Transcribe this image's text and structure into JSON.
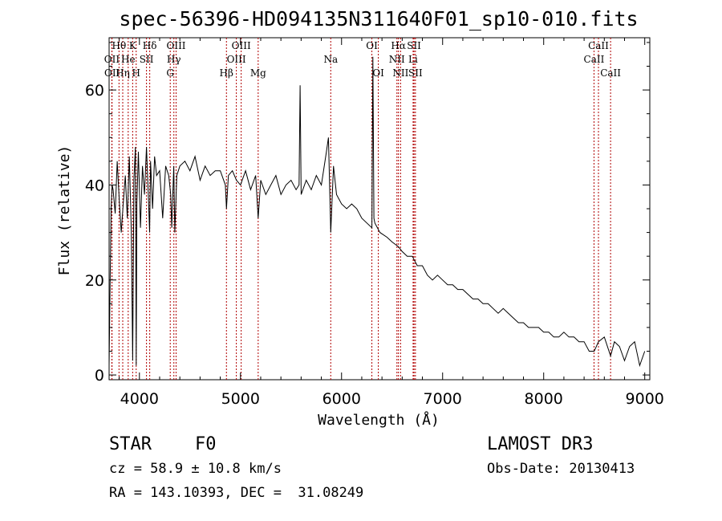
{
  "chart_data": {
    "type": "line",
    "title": "spec-56396-HD094135N311640F01_sp10-010.fits",
    "xlabel": "Wavelength (Å)",
    "ylabel": "Flux (relative)",
    "xlim": [
      3700,
      9050
    ],
    "ylim": [
      -1,
      71
    ],
    "xticks": [
      4000,
      5000,
      6000,
      7000,
      8000,
      9000
    ],
    "xtick_labels": [
      "4000",
      "5000",
      "6000",
      "7000",
      "8000",
      "9000"
    ],
    "yticks": [
      0,
      20,
      40,
      60
    ],
    "ytick_labels": [
      "0",
      "20",
      "40",
      "60"
    ],
    "grid": false,
    "series": [
      {
        "name": "flux",
        "x": [
          3700,
          3710,
          3720,
          3730,
          3740,
          3760,
          3780,
          3800,
          3820,
          3840,
          3860,
          3880,
          3900,
          3920,
          3933,
          3945,
          3960,
          3968,
          3975,
          3990,
          4010,
          4030,
          4050,
          4070,
          4090,
          4101,
          4110,
          4130,
          4150,
          4170,
          4200,
          4230,
          4260,
          4290,
          4310,
          4320,
          4340,
          4350,
          4370,
          4400,
          4450,
          4500,
          4550,
          4600,
          4650,
          4700,
          4750,
          4800,
          4850,
          4861,
          4880,
          4920,
          4960,
          5000,
          5050,
          5100,
          5150,
          5175,
          5200,
          5250,
          5300,
          5350,
          5400,
          5450,
          5500,
          5550,
          5580,
          5590,
          5600,
          5650,
          5700,
          5750,
          5800,
          5850,
          5870,
          5893,
          5920,
          5950,
          6000,
          6050,
          6100,
          6150,
          6200,
          6250,
          6300,
          6310,
          6320,
          6330,
          6380,
          6450,
          6500,
          6563,
          6600,
          6650,
          6700,
          6750,
          6800,
          6850,
          6900,
          6950,
          7000,
          7050,
          7100,
          7150,
          7200,
          7250,
          7300,
          7350,
          7400,
          7450,
          7500,
          7550,
          7600,
          7650,
          7700,
          7750,
          7800,
          7850,
          7900,
          7950,
          8000,
          8050,
          8100,
          8150,
          8200,
          8250,
          8300,
          8350,
          8400,
          8450,
          8500,
          8542,
          8600,
          8662,
          8700,
          8750,
          8800,
          8850,
          8900,
          8950,
          9000
        ],
        "values": [
          2,
          20,
          35,
          40,
          39,
          34,
          45,
          37,
          30,
          36,
          42,
          33,
          46,
          30,
          3,
          41,
          48,
          2,
          36,
          47,
          31,
          44,
          38,
          48,
          37,
          30,
          45,
          35,
          46,
          42,
          43,
          33,
          44,
          42,
          38,
          31,
          44,
          30,
          42,
          44,
          45,
          43,
          46,
          41,
          44,
          42,
          43,
          43,
          40,
          35,
          42,
          43,
          41,
          40,
          43,
          39,
          42,
          33,
          41,
          38,
          40,
          42,
          38,
          40,
          41,
          39,
          40,
          61,
          38,
          41,
          39,
          42,
          40,
          47,
          50,
          30,
          44,
          38,
          36,
          35,
          36,
          35,
          33,
          32,
          31,
          67,
          33,
          32,
          30,
          29,
          28,
          27,
          26,
          25,
          25,
          23,
          23,
          21,
          20,
          21,
          20,
          19,
          19,
          18,
          18,
          17,
          16,
          16,
          15,
          15,
          14,
          13,
          14,
          13,
          12,
          11,
          11,
          10,
          10,
          10,
          9,
          9,
          8,
          8,
          9,
          8,
          8,
          7,
          7,
          5,
          5,
          7,
          8,
          4,
          7,
          6,
          3,
          6,
          7,
          2,
          5
        ]
      }
    ],
    "lines": [
      {
        "name": "Hθ",
        "x": 3798,
        "row": 0
      },
      {
        "name": "OII",
        "x": 3727,
        "row": 1
      },
      {
        "name": "OII",
        "x": 3729,
        "row": 2
      },
      {
        "name": "K",
        "x": 3933,
        "row": 0
      },
      {
        "name": "He",
        "x": 3889,
        "row": 1
      },
      {
        "name": "Hη",
        "x": 3835,
        "row": 2
      },
      {
        "name": "Hδ",
        "x": 4102,
        "row": 0
      },
      {
        "name": "SII",
        "x": 4070,
        "row": 1
      },
      {
        "name": "H",
        "x": 3968,
        "row": 2
      },
      {
        "name": "OIII",
        "x": 4363,
        "row": 0
      },
      {
        "name": "Hγ",
        "x": 4341,
        "row": 1
      },
      {
        "name": "G",
        "x": 4305,
        "row": 2
      },
      {
        "name": "OIII",
        "x": 5007,
        "row": 0
      },
      {
        "name": "OIII",
        "x": 4959,
        "row": 1
      },
      {
        "name": "Hβ",
        "x": 4861,
        "row": 2
      },
      {
        "name": "Mg",
        "x": 5175,
        "row": 2
      },
      {
        "name": "Na",
        "x": 5893,
        "row": 1
      },
      {
        "name": "OI",
        "x": 6300,
        "row": 0
      },
      {
        "name": "OI",
        "x": 6364,
        "row": 2
      },
      {
        "name": "Hα",
        "x": 6563,
        "row": 0
      },
      {
        "name": "SII",
        "x": 6717,
        "row": 0
      },
      {
        "name": "NII",
        "x": 6548,
        "row": 1
      },
      {
        "name": "Li",
        "x": 6708,
        "row": 1
      },
      {
        "name": "NII",
        "x": 6584,
        "row": 2
      },
      {
        "name": "SII",
        "x": 6731,
        "row": 2
      },
      {
        "name": "CaII",
        "x": 8542,
        "row": 0
      },
      {
        "name": "CaII",
        "x": 8498,
        "row": 1
      },
      {
        "name": "CaII",
        "x": 8662,
        "row": 2
      }
    ],
    "colors": {
      "flux": "#000000",
      "lines": "#b00000",
      "axes": "#000000"
    }
  },
  "info": {
    "object_class": "STAR",
    "subclass": "F0",
    "survey": "LAMOST DR3",
    "cz": "cz = 58.9 ± 10.8 km/s",
    "obs_date": "Obs-Date: 20130413",
    "radec": "RA = 143.10393, DEC =  31.08249"
  }
}
